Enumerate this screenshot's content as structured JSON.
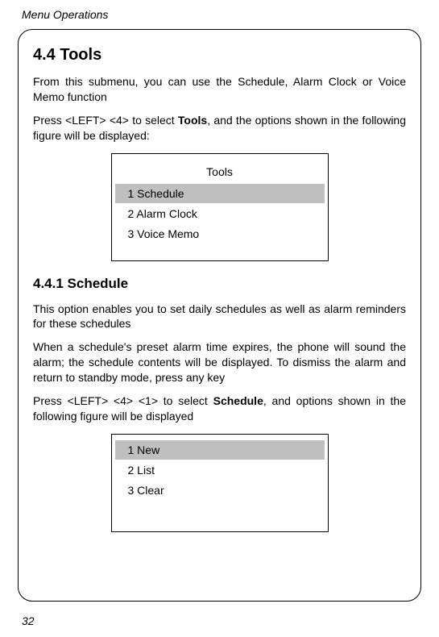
{
  "header": "Menu Operations",
  "section": {
    "title": "4.4 Tools",
    "para1": "From this submenu, you can use the Schedule, Alarm Clock or Voice Memo function",
    "para2_pre": "Press <LEFT> <4> to select ",
    "para2_bold": "Tools",
    "para2_post": ", and the options shown in the following figure will be displayed:"
  },
  "menu1": {
    "title": "Tools",
    "items": [
      {
        "label": "1 Schedule",
        "selected": true
      },
      {
        "label": "2 Alarm Clock",
        "selected": false
      },
      {
        "label": "3 Voice Memo",
        "selected": false
      }
    ]
  },
  "subsection": {
    "title": "4.4.1 Schedule",
    "para1": "This option enables you to set daily schedules as well as alarm reminders for these schedules",
    "para2": "When a schedule's preset alarm time expires, the phone will sound the alarm; the schedule contents will be displayed. To dismiss the alarm and return to standby mode, press any key",
    "para3_pre": "Press <LEFT> <4> <1> to select ",
    "para3_bold": "Schedule",
    "para3_post": ", and options shown in the following figure will be displayed"
  },
  "menu2": {
    "items": [
      {
        "label": "1 New",
        "selected": true
      },
      {
        "label": "2 List",
        "selected": false
      },
      {
        "label": "3 Clear",
        "selected": false
      }
    ]
  },
  "pageNumber": "32"
}
